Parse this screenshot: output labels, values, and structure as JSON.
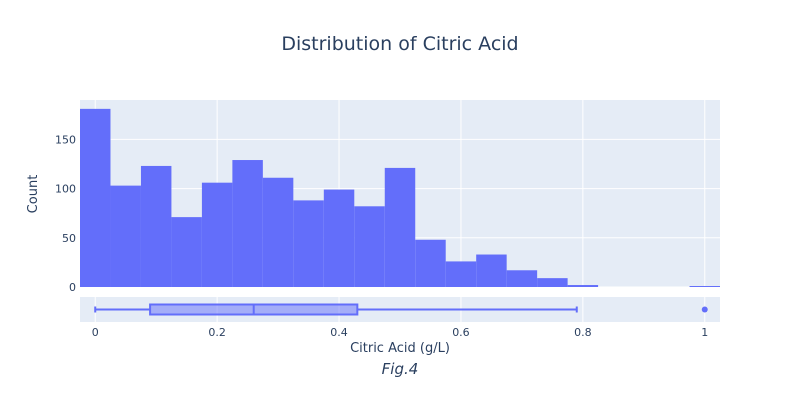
{
  "chart_data": {
    "type": "histogram",
    "title": "Distribution of Citric Acid",
    "xlabel": "Citric Acid (g/L)",
    "ylabel": "Count",
    "caption": "Fig.4",
    "bar_color": "#636efa",
    "plot_bg": "#e5ecf6",
    "text_color": "#2a3f5f",
    "xlim": [
      -0.025,
      1.025
    ],
    "ylim": [
      0,
      190
    ],
    "bin_width": 0.05,
    "bins": [
      {
        "start": -0.025,
        "count": 181
      },
      {
        "start": 0.025,
        "count": 103
      },
      {
        "start": 0.075,
        "count": 123
      },
      {
        "start": 0.125,
        "count": 71
      },
      {
        "start": 0.175,
        "count": 106
      },
      {
        "start": 0.225,
        "count": 129
      },
      {
        "start": 0.275,
        "count": 111
      },
      {
        "start": 0.325,
        "count": 88
      },
      {
        "start": 0.375,
        "count": 99
      },
      {
        "start": 0.425,
        "count": 82
      },
      {
        "start": 0.475,
        "count": 121
      },
      {
        "start": 0.525,
        "count": 48
      },
      {
        "start": 0.575,
        "count": 26
      },
      {
        "start": 0.625,
        "count": 33
      },
      {
        "start": 0.675,
        "count": 17
      },
      {
        "start": 0.725,
        "count": 9
      },
      {
        "start": 0.775,
        "count": 2
      },
      {
        "start": 0.825,
        "count": 0
      },
      {
        "start": 0.875,
        "count": 0
      },
      {
        "start": 0.925,
        "count": 0
      },
      {
        "start": 0.975,
        "count": 1
      }
    ],
    "x_ticks": [
      {
        "value": 0,
        "label": "0"
      },
      {
        "value": 0.2,
        "label": "0.2"
      },
      {
        "value": 0.4,
        "label": "0.4"
      },
      {
        "value": 0.6,
        "label": "0.6"
      },
      {
        "value": 0.8,
        "label": "0.8"
      },
      {
        "value": 1,
        "label": "1"
      }
    ],
    "y_ticks": [
      {
        "value": 0,
        "label": "0"
      },
      {
        "value": 50,
        "label": "50"
      },
      {
        "value": 100,
        "label": "100"
      },
      {
        "value": 150,
        "label": "150"
      }
    ],
    "boxplot": {
      "min": 0,
      "q1": 0.09,
      "median": 0.26,
      "q3": 0.43,
      "max": 0.79,
      "outliers": [
        1.0
      ]
    }
  }
}
